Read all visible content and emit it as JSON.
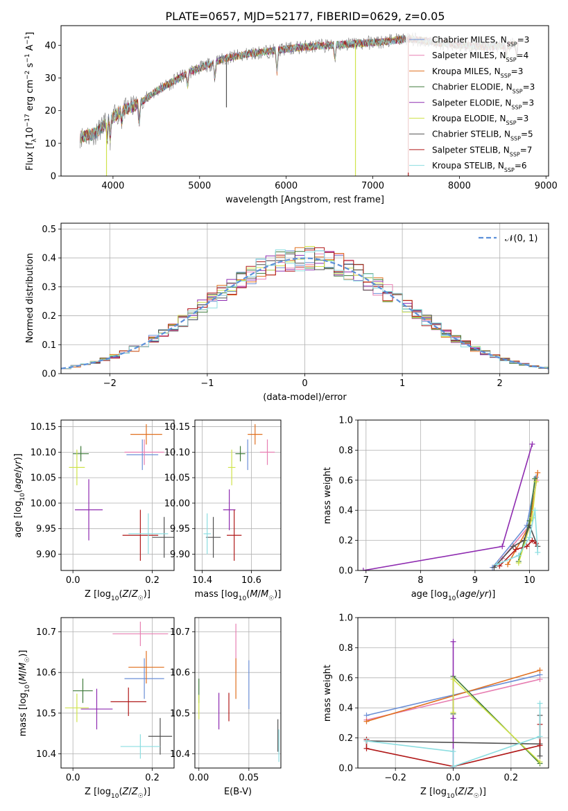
{
  "figure": {
    "title": "PLATE=0657, MJD=52177, FIBERID=0629, z=0.05"
  },
  "colors": {
    "Chabrier MILES": "#6b8fd6",
    "Salpeter MILES": "#e77fb2",
    "Kroupa MILES": "#e0701f",
    "Chabrier ELODIE": "#3f7a3a",
    "Salpeter ELODIE": "#8e2bb0",
    "Kroupa ELODIE": "#cfe34a",
    "Chabrier STELIB": "#505050",
    "Salpeter STELIB": "#b01818",
    "Kroupa STELIB": "#8bdde0"
  },
  "chart_data": [
    {
      "id": "spectrum",
      "type": "line",
      "xlabel": "wavelength [Angstrom, rest frame]",
      "ylabel": "Flux [f_λ 10^-17 erg cm^-2 s^-1 A^-1]",
      "xlim": [
        3400,
        9030
      ],
      "ylim": [
        0,
        46
      ],
      "xticks": [
        4000,
        5000,
        6000,
        7000,
        8000,
        9000
      ],
      "yticks": [
        0,
        10,
        20,
        30,
        40
      ],
      "legend_position": "right",
      "series": [
        {
          "name": "Chabrier MILES, N_SSP=3",
          "label": "Chabrier MILES, N",
          "sub": "SSP",
          "tail": "=3"
        },
        {
          "name": "Salpeter MILES, N_SSP=4",
          "label": "Salpeter MILES, N",
          "sub": "SSP",
          "tail": "=4"
        },
        {
          "name": "Kroupa MILES, N_SSP=3",
          "label": "Kroupa MILES, N",
          "sub": "SSP",
          "tail": "=3"
        },
        {
          "name": "Chabrier ELODIE, N_SSP=3",
          "label": "Chabrier ELODIE, N",
          "sub": "SSP",
          "tail": "=3"
        },
        {
          "name": "Salpeter ELODIE, N_SSP=3",
          "label": "Salpeter ELODIE, N",
          "sub": "SSP",
          "tail": "=3"
        },
        {
          "name": "Kroupa ELODIE, N_SSP=3",
          "label": "Kroupa ELODIE, N",
          "sub": "SSP",
          "tail": "=3"
        },
        {
          "name": "Chabrier STELIB, N_SSP=5",
          "label": "Chabrier STELIB, N",
          "sub": "SSP",
          "tail": "=5"
        },
        {
          "name": "Salpeter STELIB, N_SSP=7",
          "label": "Salpeter STELIB, N",
          "sub": "SSP",
          "tail": "=7"
        },
        {
          "name": "Kroupa STELIB, N_SSP=6",
          "label": "Kroupa STELIB, N",
          "sub": "SSP",
          "tail": "=6"
        }
      ],
      "continuum": [
        [
          3620,
          12
        ],
        [
          3800,
          13
        ],
        [
          3950,
          17
        ],
        [
          4100,
          20
        ],
        [
          4300,
          22
        ],
        [
          4500,
          26
        ],
        [
          4700,
          29
        ],
        [
          4900,
          32
        ],
        [
          5100,
          34
        ],
        [
          5300,
          36
        ],
        [
          5600,
          37.5
        ],
        [
          5900,
          38.5
        ],
        [
          6200,
          39.5
        ],
        [
          6500,
          40
        ],
        [
          6800,
          40.5
        ],
        [
          7100,
          41
        ],
        [
          7400,
          42
        ],
        [
          7700,
          41
        ],
        [
          8000,
          40
        ],
        [
          8300,
          39.5
        ],
        [
          8600,
          40
        ],
        [
          8680,
          41
        ]
      ],
      "features": [
        {
          "x": 3933,
          "depth": 5
        },
        {
          "x": 3968,
          "depth": 6
        },
        {
          "x": 4101,
          "depth": 3
        },
        {
          "x": 4304,
          "depth": 6
        },
        {
          "x": 4861,
          "depth": 4
        },
        {
          "x": 5175,
          "depth": 5
        },
        {
          "x": 5893,
          "depth": 7
        },
        {
          "x": 6563,
          "depth": 5
        },
        {
          "x": 8542,
          "depth": 4
        },
        {
          "x": 8662,
          "depth": 4
        }
      ],
      "artifacts": [
        {
          "x": 3925,
          "ymin": 0,
          "color": "#cfe34a"
        },
        {
          "x": 5310,
          "ymin": 21,
          "color": "#505050"
        },
        {
          "x": 6800,
          "ymin": 0,
          "color": "#cfe34a"
        },
        {
          "x": 7410,
          "ymin": 0,
          "color": "#b01818"
        }
      ],
      "grid": false
    },
    {
      "id": "residuals",
      "type": "step",
      "xlabel": "(data-model)/error",
      "ylabel": "Normed distribution",
      "xlim": [
        -2.5,
        2.5
      ],
      "ylim": [
        0,
        0.52
      ],
      "xticks": [
        -2,
        -1,
        0,
        1,
        2
      ],
      "xtick_labels": [
        "−2",
        "−1",
        "0",
        "1",
        "2"
      ],
      "yticks": [
        0.0,
        0.1,
        0.2,
        0.3,
        0.4,
        0.5
      ],
      "ytick_labels": [
        "0.0",
        "0.1",
        "0.2",
        "0.3",
        "0.4",
        "0.5"
      ],
      "bin_width": 0.1,
      "legend": {
        "label": "𝒩(0, 1)",
        "position": "top-right",
        "style": "dashed",
        "color": "#5b8fd9"
      },
      "grid": true
    },
    {
      "id": "age_vs_Z",
      "type": "errorbar",
      "xlabel": "Z [log10(Z/Z☉)]",
      "ylabel": "age  [log10(age/yr)]",
      "xlim": [
        -0.03,
        0.255
      ],
      "ylim": [
        9.868,
        10.163
      ],
      "xticks": [
        0.0,
        0.2
      ],
      "xtick_labels": [
        "0.0",
        "0.2"
      ],
      "yticks": [
        9.9,
        9.95,
        10.0,
        10.05,
        10.1,
        10.15
      ],
      "ytick_labels": [
        "9.90",
        "9.95",
        "10.00",
        "10.05",
        "10.10",
        "10.15"
      ],
      "points": [
        {
          "series": "Chabrier MILES",
          "x": 0.175,
          "xerr": 0.04,
          "y": 10.095,
          "yerr": 0.03
        },
        {
          "series": "Salpeter MILES",
          "x": 0.18,
          "xerr": 0.05,
          "y": 10.1,
          "yerr": 0.025
        },
        {
          "series": "Kroupa MILES",
          "x": 0.185,
          "xerr": 0.04,
          "y": 10.135,
          "yerr": 0.02
        },
        {
          "series": "Chabrier ELODIE",
          "x": 0.02,
          "xerr": 0.02,
          "y": 10.097,
          "yerr": 0.015
        },
        {
          "series": "Salpeter ELODIE",
          "x": 0.04,
          "xerr": 0.035,
          "y": 9.987,
          "yerr": 0.06
        },
        {
          "series": "Kroupa ELODIE",
          "x": 0.01,
          "xerr": 0.02,
          "y": 10.07,
          "yerr": 0.035
        },
        {
          "series": "Chabrier STELIB",
          "x": 0.23,
          "xerr": 0.03,
          "y": 9.933,
          "yerr": 0.04
        },
        {
          "series": "Salpeter STELIB",
          "x": 0.17,
          "xerr": 0.045,
          "y": 9.937,
          "yerr": 0.05
        },
        {
          "series": "Kroupa STELIB",
          "x": 0.19,
          "xerr": 0.05,
          "y": 9.94,
          "yerr": 0.04
        }
      ],
      "grid": true
    },
    {
      "id": "age_vs_mass",
      "type": "errorbar",
      "xlabel": "mass [log10(M/M☉)]",
      "ylabel": "",
      "xlim": [
        10.37,
        10.72
      ],
      "ylim": [
        9.868,
        10.163
      ],
      "xticks": [
        10.4,
        10.6
      ],
      "xtick_labels": [
        "10.4",
        "10.6"
      ],
      "yticks": [
        9.9,
        9.95,
        10.0,
        10.05,
        10.1,
        10.15
      ],
      "ytick_labels": [
        "9.90",
        "9.95",
        "10.00",
        "10.05",
        "10.10",
        "10.15"
      ],
      "points": [
        {
          "series": "Chabrier MILES",
          "x": 10.585,
          "xerr": 0.0,
          "y": 10.095,
          "yerr": 0.03
        },
        {
          "series": "Salpeter MILES",
          "x": 10.665,
          "xerr": 0.03,
          "y": 10.1,
          "yerr": 0.025
        },
        {
          "series": "Kroupa MILES",
          "x": 10.615,
          "xerr": 0.03,
          "y": 10.135,
          "yerr": 0.02
        },
        {
          "series": "Chabrier ELODIE",
          "x": 10.555,
          "xerr": 0.02,
          "y": 10.097,
          "yerr": 0.015
        },
        {
          "series": "Salpeter ELODIE",
          "x": 10.51,
          "xerr": 0.025,
          "y": 9.987,
          "yerr": 0.04
        },
        {
          "series": "Kroupa ELODIE",
          "x": 10.52,
          "xerr": 0.015,
          "y": 10.07,
          "yerr": 0.035
        },
        {
          "series": "Chabrier STELIB",
          "x": 10.445,
          "xerr": 0.03,
          "y": 9.933,
          "yerr": 0.04
        },
        {
          "series": "Salpeter STELIB",
          "x": 10.53,
          "xerr": 0.03,
          "y": 9.937,
          "yerr": 0.05
        },
        {
          "series": "Kroupa STELIB",
          "x": 10.42,
          "xerr": 0.015,
          "y": 9.94,
          "yerr": 0.04
        }
      ],
      "grid": true
    },
    {
      "id": "mass_weight_vs_age",
      "type": "line",
      "xlabel": "age  [log10(age/yr)]",
      "ylabel": "mass weight",
      "xlim": [
        6.85,
        10.35
      ],
      "ylim": [
        0.0,
        1.0
      ],
      "xticks": [
        7,
        8,
        9,
        10
      ],
      "yticks": [
        0.0,
        0.2,
        0.4,
        0.6,
        0.8,
        1.0
      ],
      "ytick_labels": [
        "0.0",
        "0.2",
        "0.4",
        "0.6",
        "0.8",
        "1.0"
      ],
      "series": [
        {
          "series": "Chabrier MILES",
          "x": [
            9.32,
            9.95,
            10.12
          ],
          "y": [
            0.02,
            0.3,
            0.62
          ]
        },
        {
          "series": "Salpeter MILES",
          "x": [
            9.5,
            10.0,
            10.13
          ],
          "y": [
            0.08,
            0.3,
            0.6
          ]
        },
        {
          "series": "Kroupa MILES",
          "x": [
            9.6,
            10.0,
            10.15
          ],
          "y": [
            0.04,
            0.3,
            0.65
          ]
        },
        {
          "series": "Chabrier ELODIE",
          "x": [
            9.8,
            10.0,
            10.1
          ],
          "y": [
            0.06,
            0.33,
            0.61
          ]
        },
        {
          "series": "Salpeter ELODIE",
          "x": [
            6.95,
            9.5,
            10.05
          ],
          "y": [
            0.0,
            0.16,
            0.84
          ]
        },
        {
          "series": "Kroupa ELODIE",
          "x": [
            9.8,
            10.05,
            10.12
          ],
          "y": [
            0.05,
            0.35,
            0.59
          ]
        },
        {
          "series": "Chabrier STELIB",
          "x": [
            9.35,
            9.7,
            9.9,
            10.0,
            10.15
          ],
          "y": [
            0.02,
            0.16,
            0.2,
            0.3,
            0.16
          ]
        },
        {
          "series": "Salpeter STELIB",
          "x": [
            9.45,
            9.75,
            9.95,
            10.05,
            10.12
          ],
          "y": [
            0.03,
            0.14,
            0.16,
            0.2,
            0.18
          ]
        },
        {
          "series": "Kroupa STELIB",
          "x": [
            9.4,
            9.8,
            10.0,
            10.1,
            10.15
          ],
          "y": [
            0.04,
            0.1,
            0.22,
            0.4,
            0.12
          ]
        }
      ],
      "grid": true
    },
    {
      "id": "mass_vs_Z",
      "type": "errorbar",
      "xlabel": "Z [log10(Z/Z☉)]",
      "ylabel": "mass [log10(M/M☉)]",
      "xlim": [
        -0.03,
        0.255
      ],
      "ylim": [
        10.365,
        10.735
      ],
      "xticks": [
        0.0,
        0.2
      ],
      "xtick_labels": [
        "0.0",
        "0.2"
      ],
      "yticks": [
        10.4,
        10.5,
        10.6,
        10.7
      ],
      "ytick_labels": [
        "10.4",
        "10.5",
        "10.6",
        "10.7"
      ],
      "points": [
        {
          "series": "Chabrier MILES",
          "x": 0.18,
          "xerr": 0.05,
          "y": 10.585,
          "yerr": 0.05
        },
        {
          "series": "Salpeter MILES",
          "x": 0.17,
          "xerr": 0.07,
          "y": 10.695,
          "yerr": 0.03
        },
        {
          "series": "Kroupa MILES",
          "x": 0.185,
          "xerr": 0.045,
          "y": 10.613,
          "yerr": 0.04
        },
        {
          "series": "Chabrier ELODIE",
          "x": 0.025,
          "xerr": 0.025,
          "y": 10.555,
          "yerr": 0.03
        },
        {
          "series": "Salpeter ELODIE",
          "x": 0.06,
          "xerr": 0.04,
          "y": 10.51,
          "yerr": 0.05
        },
        {
          "series": "Kroupa ELODIE",
          "x": 0.01,
          "xerr": 0.03,
          "y": 10.513,
          "yerr": 0.035
        },
        {
          "series": "Chabrier STELIB",
          "x": 0.22,
          "xerr": 0.03,
          "y": 10.443,
          "yerr": 0.045
        },
        {
          "series": "Salpeter STELIB",
          "x": 0.14,
          "xerr": 0.045,
          "y": 10.528,
          "yerr": 0.035
        },
        {
          "series": "Kroupa STELIB",
          "x": 0.17,
          "xerr": 0.05,
          "y": 10.418,
          "yerr": 0.03
        }
      ],
      "grid": true
    },
    {
      "id": "mass_vs_EBV",
      "type": "errorbar",
      "xlabel": "E(B-V)",
      "ylabel": "",
      "xlim": [
        -0.004,
        0.082
      ],
      "ylim": [
        10.365,
        10.735
      ],
      "xticks": [
        0.0,
        0.05
      ],
      "xtick_labels": [
        "0.00",
        "0.05"
      ],
      "yticks": [
        10.4,
        10.5,
        10.6,
        10.7
      ],
      "ytick_labels": [
        "10.4",
        "10.5",
        "10.6",
        "10.7"
      ],
      "points": [
        {
          "series": "Chabrier MILES",
          "x": 0.05,
          "xerr": 0.0,
          "y": 10.57,
          "yerr": 0.06
        },
        {
          "series": "Salpeter MILES",
          "x": 0.037,
          "xerr": 0.0,
          "y": 10.66,
          "yerr": 0.06
        },
        {
          "series": "Kroupa MILES",
          "x": 0.037,
          "xerr": 0.0,
          "y": 10.585,
          "yerr": 0.05
        },
        {
          "series": "Chabrier ELODIE",
          "x": 0.0,
          "xerr": 0.0,
          "y": 10.555,
          "yerr": 0.03
        },
        {
          "series": "Salpeter ELODIE",
          "x": 0.02,
          "xerr": 0.0,
          "y": 10.505,
          "yerr": 0.045
        },
        {
          "series": "Kroupa ELODIE",
          "x": 0.0,
          "xerr": 0.0,
          "y": 10.515,
          "yerr": 0.03
        },
        {
          "series": "Chabrier STELIB",
          "x": 0.079,
          "xerr": 0.0,
          "y": 10.445,
          "yerr": 0.04
        },
        {
          "series": "Salpeter STELIB",
          "x": 0.03,
          "xerr": 0.0,
          "y": 10.515,
          "yerr": 0.035
        },
        {
          "series": "Kroupa STELIB",
          "x": 0.08,
          "xerr": 0.0,
          "y": 10.42,
          "yerr": 0.04
        }
      ],
      "grid": true
    },
    {
      "id": "mass_weight_vs_Z",
      "type": "line",
      "xlabel": "Z [log10(Z/Z☉)]",
      "ylabel": "mass weight",
      "xlim": [
        -0.33,
        0.33
      ],
      "ylim": [
        0.0,
        1.0
      ],
      "xticks": [
        -0.2,
        0.0,
        0.2
      ],
      "xtick_labels": [
        "−0.2",
        "0.0",
        "0.2"
      ],
      "yticks": [
        0.0,
        0.2,
        0.4,
        0.6,
        0.8,
        1.0
      ],
      "ytick_labels": [
        "0.0",
        "0.2",
        "0.4",
        "0.6",
        "0.8",
        "1.0"
      ],
      "series": [
        {
          "series": "Chabrier MILES",
          "x": [
            -0.3,
            0.3
          ],
          "y": [
            0.35,
            0.62
          ]
        },
        {
          "series": "Salpeter MILES",
          "x": [
            -0.3,
            0.3
          ],
          "y": [
            0.32,
            0.59
          ]
        },
        {
          "series": "Kroupa MILES",
          "x": [
            -0.3,
            0.3
          ],
          "y": [
            0.31,
            0.65
          ]
        },
        {
          "series": "Chabrier ELODIE",
          "x": [
            0.0,
            0.0,
            0.3
          ],
          "y": [
            0.36,
            0.61,
            0.03
          ]
        },
        {
          "series": "Salpeter ELODIE",
          "x": [
            0.0,
            0.0,
            0.0
          ],
          "y": [
            0.0,
            0.33,
            0.84
          ]
        },
        {
          "series": "Kroupa ELODIE",
          "x": [
            0.0,
            0.0,
            0.3
          ],
          "y": [
            0.37,
            0.59,
            0.04
          ]
        },
        {
          "series": "Chabrier STELIB",
          "x": [
            -0.3,
            0.3,
            0.3,
            0.3
          ],
          "y": [
            0.18,
            0.16,
            0.08,
            0.35
          ]
        },
        {
          "series": "Salpeter STELIB",
          "x": [
            -0.3,
            -0.3,
            0.0,
            0.3,
            0.3
          ],
          "y": [
            0.19,
            0.13,
            0.01,
            0.15,
            0.29
          ]
        },
        {
          "series": "Kroupa STELIB",
          "x": [
            -0.3,
            0.0,
            0.0,
            0.3,
            0.3
          ],
          "y": [
            0.18,
            0.11,
            0.01,
            0.21,
            0.43
          ]
        }
      ],
      "grid": true
    }
  ]
}
